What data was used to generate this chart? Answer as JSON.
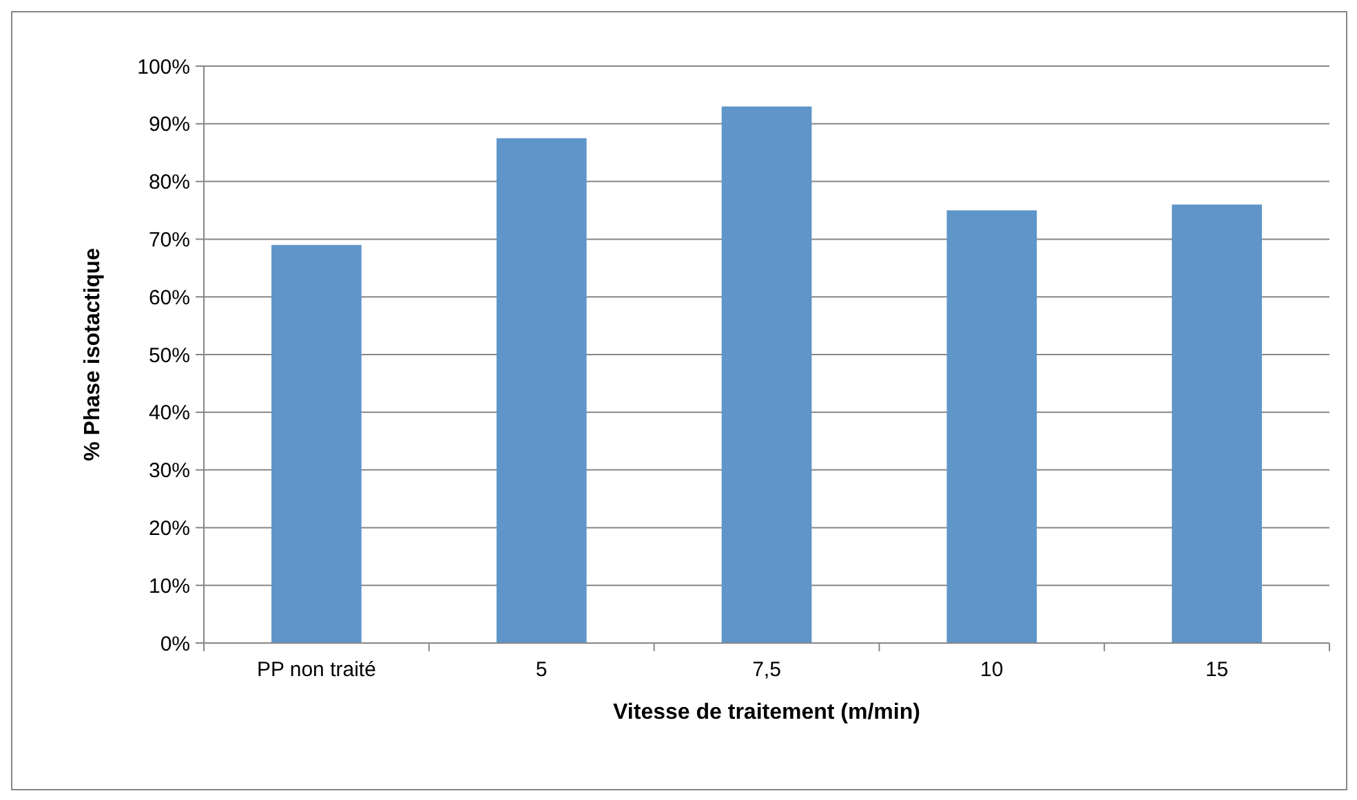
{
  "chart_data": {
    "type": "bar",
    "xlabel": "Vitesse de traitement (m/min)",
    "ylabel": "% Phase isotactique",
    "categories": [
      "PP non traité",
      "5",
      "7,5",
      "10",
      "15"
    ],
    "values": [
      69,
      87.5,
      93,
      75,
      76
    ],
    "color": "#5f95c9",
    "ylim": [
      0,
      100
    ],
    "yticks": [
      {
        "value": 0,
        "label": "0%"
      },
      {
        "value": 10,
        "label": "10%"
      },
      {
        "value": 20,
        "label": "20%"
      },
      {
        "value": 30,
        "label": "30%"
      },
      {
        "value": 40,
        "label": "40%"
      },
      {
        "value": 50,
        "label": "50%"
      },
      {
        "value": 60,
        "label": "60%"
      },
      {
        "value": 70,
        "label": "70%"
      },
      {
        "value": 80,
        "label": "80%"
      },
      {
        "value": 90,
        "label": "90%"
      },
      {
        "value": 100,
        "label": "100%"
      }
    ],
    "grid": "y"
  }
}
